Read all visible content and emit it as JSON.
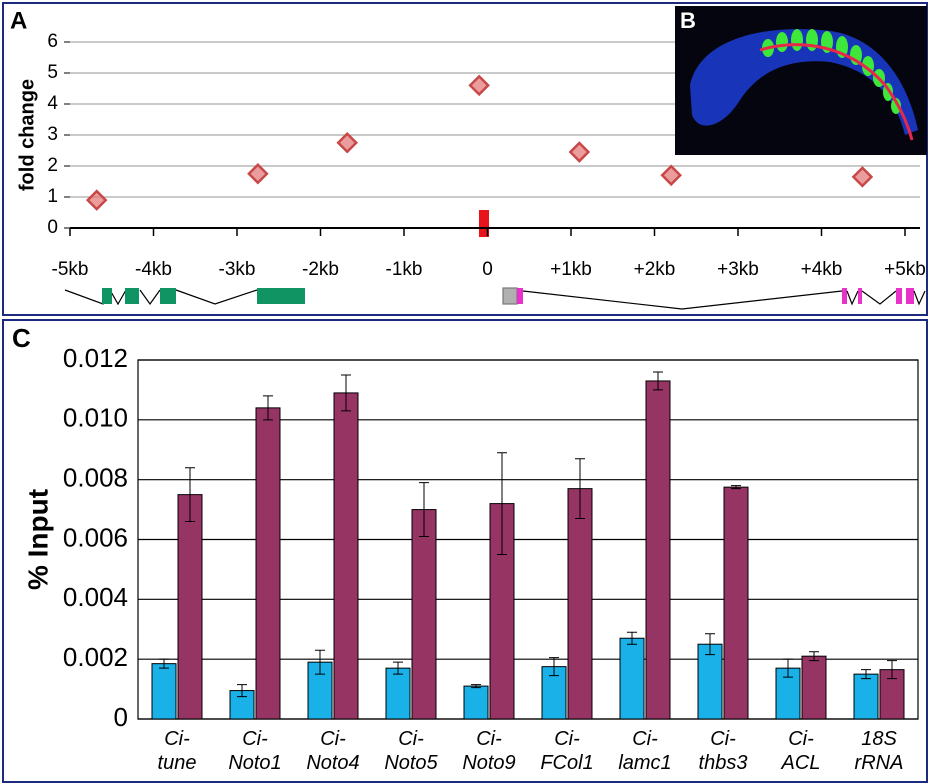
{
  "panel_labels": [
    "A",
    "B",
    "C"
  ],
  "chart_data": [
    {
      "type": "scatter",
      "ylabel": "fold change",
      "x": [
        -4.68,
        -2.75,
        -1.68,
        -0.1,
        1.1,
        2.2,
        4.49
      ],
      "values": [
        0.9,
        1.75,
        2.75,
        4.6,
        2.45,
        1.7,
        1.65
      ],
      "color": "#e47c7c",
      "xlim": [
        -5,
        5
      ],
      "xticks": [
        {
          "value": -5,
          "label": "-5kb"
        },
        {
          "value": -4,
          "label": "-4kb"
        },
        {
          "value": -3,
          "label": "-3kb"
        },
        {
          "value": -2,
          "label": "-2kb"
        },
        {
          "value": -1,
          "label": "-1kb"
        },
        0,
        {
          "value": 1,
          "label": "+1kb"
        },
        {
          "value": 2,
          "label": "+2kb"
        },
        {
          "value": 3,
          "label": "+3kb"
        },
        {
          "value": 4,
          "label": "+4kb"
        },
        {
          "value": 5,
          "label": "+5kb"
        }
      ],
      "ylim": [
        0,
        6
      ],
      "yticks": [
        0,
        1,
        2,
        3,
        4,
        5,
        6
      ],
      "grid": true
    },
    {
      "type": "bar",
      "ylabel": "% Input",
      "categories": [
        "Ci-\ntune",
        "Ci-\nNoto1",
        "Ci-\nNoto4",
        "Ci-\nNoto5",
        "Ci-\nNoto9",
        "Ci-\nFCol1",
        "Ci-\nlamc1",
        "Ci-\nthbs3",
        "Ci-\nACL",
        "18S\nrRNA"
      ],
      "series": [
        {
          "color": "#1ab0e8",
          "values": [
            0.00185,
            0.00095,
            0.0019,
            0.0017,
            0.0011,
            0.00175,
            0.0027,
            0.0025,
            0.0017,
            0.0015
          ],
          "errors": [
            0.00015,
            0.0002,
            0.0004,
            0.0002,
            5e-05,
            0.0003,
            0.0002,
            0.00035,
            0.0003,
            0.00015
          ]
        },
        {
          "color": "#963464",
          "values": [
            0.0075,
            0.0104,
            0.0109,
            0.007,
            0.0072,
            0.0077,
            0.0113,
            0.00775,
            0.0021,
            0.00165
          ],
          "errors": [
            0.0009,
            0.0004,
            0.0006,
            0.0009,
            0.0017,
            0.001,
            0.0003,
            5e-05,
            0.00015,
            0.0003
          ]
        }
      ],
      "ylim": [
        0,
        0.012
      ],
      "yticks": [
        0,
        0.002,
        0.004,
        0.006,
        0.008,
        {
          "value": 0.01,
          "label": "0.010"
        },
        0.012
      ],
      "grid": true
    }
  ]
}
